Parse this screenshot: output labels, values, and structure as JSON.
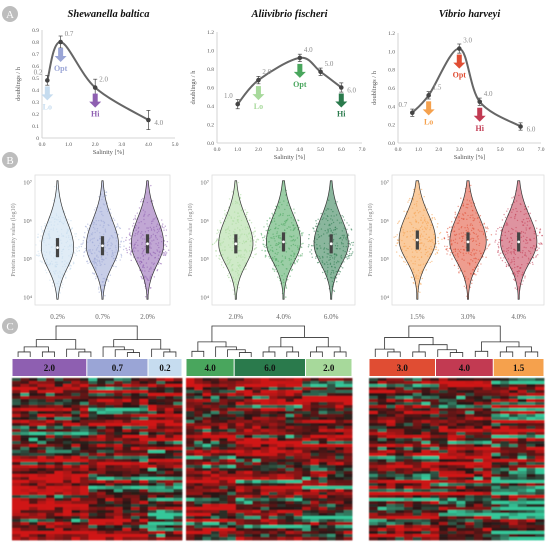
{
  "panel_letters": [
    "A",
    "B",
    "C"
  ],
  "colors": {
    "shewanella": [
      "#8e5fb1",
      "#9aa5d6",
      "#c6dcef"
    ],
    "aliivibrio": [
      "#49a65d",
      "#2a7a4c",
      "#a7d99b"
    ],
    "vibrio": [
      "#e04d33",
      "#c23a52",
      "#f5a14d"
    ],
    "growth_line": "#666666",
    "heatmap_red": "#d01818",
    "heatmap_green": "#35c79a",
    "heatmap_dark": "#2a1212"
  },
  "chart_data": [
    {
      "type": "line",
      "panel": "A",
      "title": "Shewanella baltica",
      "xlabel": "Salinity [%]",
      "ylabel": "doublings / h",
      "xlim": [
        0.0,
        5.0
      ],
      "ylim": [
        0,
        0.9
      ],
      "xticks": [
        "0.0",
        "1.0",
        "2.0",
        "3.0",
        "4.0",
        "5.0"
      ],
      "yticks": [
        "0",
        "0.1",
        "0.2",
        "0.3",
        "0.4",
        "0.5",
        "0.6",
        "0.7",
        "0.8",
        "0.9"
      ],
      "x": [
        0.2,
        0.7,
        2.0,
        4.0
      ],
      "y": [
        0.48,
        0.8,
        0.42,
        0.15
      ],
      "errors": [
        0.04,
        0.05,
        0.07,
        0.08
      ],
      "point_labels": [
        "0.2",
        "0.7",
        "2.0",
        "4.0"
      ],
      "conditions": [
        {
          "label": "Lo",
          "x": 0.2,
          "color": "#c6dcef"
        },
        {
          "label": "Opt",
          "x": 0.7,
          "color": "#9aa5d6"
        },
        {
          "label": "Hi",
          "x": 2.0,
          "color": "#8e5fb1"
        }
      ]
    },
    {
      "type": "line",
      "panel": "A",
      "title": "Aliivibrio fischeri",
      "xlabel": "Salinity [%]",
      "ylabel": "doublings / h",
      "xlim": [
        0.0,
        7.0
      ],
      "ylim": [
        0.0,
        1.2
      ],
      "xticks": [
        "0.0",
        "1.0",
        "2.0",
        "3.0",
        "4.0",
        "5.0",
        "6.0",
        "7.0"
      ],
      "yticks": [
        "0.0",
        "0.2",
        "0.4",
        "0.6",
        "0.8",
        "1.0",
        "1.2"
      ],
      "x": [
        1.0,
        2.0,
        4.0,
        5.0,
        6.0
      ],
      "y": [
        0.42,
        0.68,
        0.92,
        0.77,
        0.6
      ],
      "errors": [
        0.05,
        0.04,
        0.04,
        0.04,
        0.05
      ],
      "point_labels": [
        "1.0",
        "2.0",
        "4.0",
        "5.0",
        "6.0"
      ],
      "conditions": [
        {
          "label": "Lo",
          "x": 2.0,
          "color": "#a7d99b"
        },
        {
          "label": "Opt",
          "x": 4.0,
          "color": "#49a65d"
        },
        {
          "label": "Hi",
          "x": 6.0,
          "color": "#2a7a4c"
        }
      ]
    },
    {
      "type": "line",
      "panel": "A",
      "title": "Vibrio harveyi",
      "xlabel": "Salinity [%]",
      "ylabel": "doublings / h",
      "xlim": [
        0.0,
        7.0
      ],
      "ylim": [
        0.0,
        1.2
      ],
      "xticks": [
        "0.0",
        "1.0",
        "2.0",
        "3.0",
        "4.0",
        "5.0",
        "6.0",
        "7.0"
      ],
      "yticks": [
        "0.0",
        "0.2",
        "0.4",
        "0.6",
        "0.8",
        "1.0",
        "1.2"
      ],
      "x": [
        0.7,
        1.5,
        3.0,
        4.0,
        6.0
      ],
      "y": [
        0.33,
        0.52,
        1.03,
        0.45,
        0.18
      ],
      "errors": [
        0.04,
        0.04,
        0.05,
        0.04,
        0.04
      ],
      "point_labels": [
        "0.7",
        "1.5",
        "3.0",
        "4.0",
        "6.0"
      ],
      "conditions": [
        {
          "label": "Lo",
          "x": 1.5,
          "color": "#f5a14d"
        },
        {
          "label": "Opt",
          "x": 3.0,
          "color": "#e04d33"
        },
        {
          "label": "Hi",
          "x": 4.0,
          "color": "#c23a52"
        }
      ]
    },
    {
      "type": "violin",
      "panel": "B",
      "ylabel": "Protein intensity value (log10)",
      "yticks": [
        "10⁴",
        "10⁵",
        "10⁶",
        "10⁷"
      ],
      "categories": [
        "0.2%",
        "0.7%",
        "2.0%"
      ],
      "colors": [
        "#c6dcef",
        "#9aa5d6",
        "#8e5fb1"
      ],
      "medians_log10": [
        5.3,
        5.35,
        5.4
      ]
    },
    {
      "type": "violin",
      "panel": "B",
      "ylabel": "Protein intensity value (log10)",
      "yticks": [
        "10⁴",
        "10⁵",
        "10⁶",
        "10⁷"
      ],
      "categories": [
        "2.0%",
        "4.0%",
        "6.0%"
      ],
      "colors": [
        "#a7d99b",
        "#49a65d",
        "#2a7a4c"
      ],
      "medians_log10": [
        5.4,
        5.45,
        5.4
      ]
    },
    {
      "type": "violin",
      "panel": "B",
      "ylabel": "Protein intensity value (log10)",
      "yticks": [
        "10⁴",
        "10⁵",
        "10⁶",
        "10⁷"
      ],
      "categories": [
        "1.5%",
        "3.0%",
        "4.0%"
      ],
      "colors": [
        "#f5a14d",
        "#e04d33",
        "#c23a52"
      ],
      "medians_log10": [
        5.5,
        5.45,
        5.45
      ]
    },
    {
      "type": "heatmap",
      "panel": "C",
      "groups": [
        {
          "label": "2.0",
          "color": "#8e5fb1"
        },
        {
          "label": "0.7",
          "color": "#9aa5d6"
        },
        {
          "label": "0.2",
          "color": "#c6dcef"
        }
      ]
    },
    {
      "type": "heatmap",
      "panel": "C",
      "groups": [
        {
          "label": "4.0",
          "color": "#49a65d"
        },
        {
          "label": "6.0",
          "color": "#2a7a4c"
        },
        {
          "label": "2.0",
          "color": "#a7d99b"
        }
      ]
    },
    {
      "type": "heatmap",
      "panel": "C",
      "groups": [
        {
          "label": "3.0",
          "color": "#e04d33"
        },
        {
          "label": "4.0",
          "color": "#c23a52"
        },
        {
          "label": "1.5",
          "color": "#f5a14d"
        }
      ]
    }
  ]
}
